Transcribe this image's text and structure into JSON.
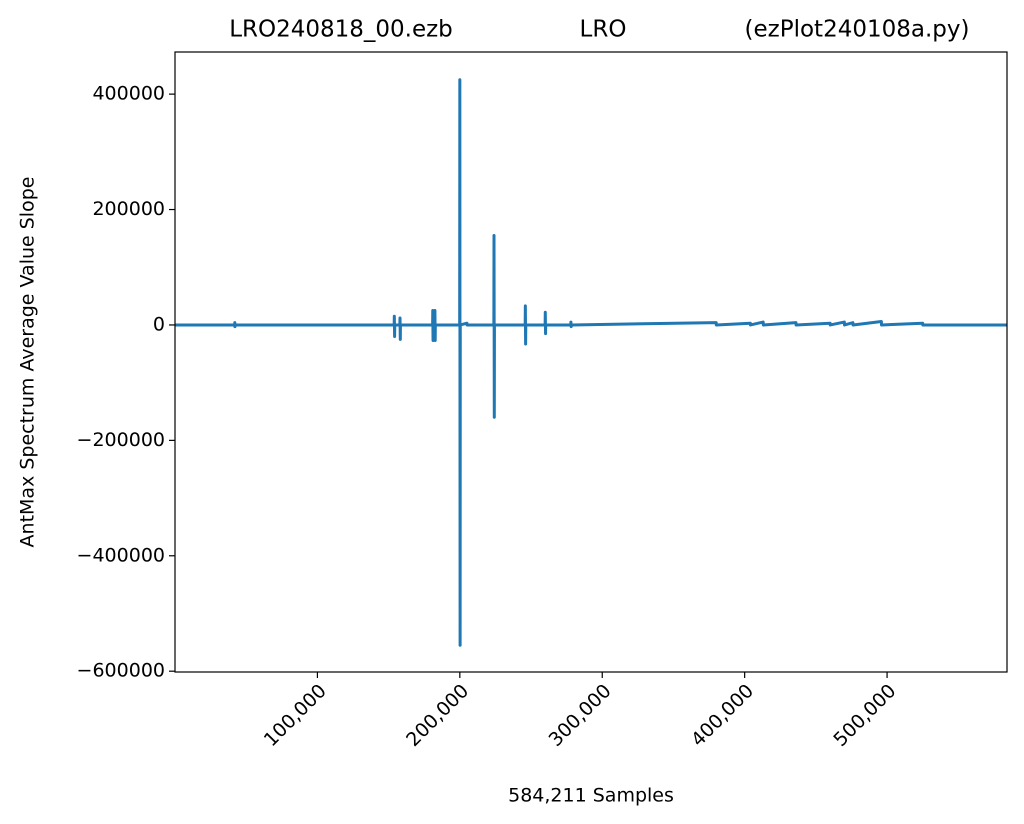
{
  "chart_data": {
    "type": "line",
    "title": [
      "LRO240818_00.ezb",
      "LRO",
      "(ezPlot240108a.py)"
    ],
    "xlabel": "584,211 Samples",
    "ylabel": "AntMax Spectrum Average Value Slope",
    "xlim": [
      0,
      584211
    ],
    "ylim": [
      -601400,
      473000
    ],
    "xticks": [
      {
        "value": 100000,
        "label": "100,000"
      },
      {
        "value": 200000,
        "label": "200,000"
      },
      {
        "value": 300000,
        "label": "300,000"
      },
      {
        "value": 400000,
        "label": "400,000"
      },
      {
        "value": 500000,
        "label": "500,000"
      }
    ],
    "yticks": [
      {
        "value": -600000,
        "label": "−600000"
      },
      {
        "value": -400000,
        "label": "−400000"
      },
      {
        "value": -200000,
        "label": "−200000"
      },
      0,
      200000,
      400000
    ],
    "grid": false,
    "x": [
      0,
      41900,
      42000,
      42100,
      42200,
      153900,
      154000,
      154200,
      154300,
      157900,
      158000,
      158200,
      158300,
      180900,
      181000,
      181200,
      182500,
      182700,
      182800,
      199900,
      200000,
      200200,
      200300,
      205000,
      205100,
      223900,
      224000,
      224200,
      224300,
      245900,
      246000,
      246200,
      246300,
      259900,
      260000,
      260200,
      260300,
      277900,
      278000,
      278200,
      278300,
      380000,
      380100,
      404000,
      404100,
      413000,
      413100,
      436000,
      436100,
      460000,
      460100,
      470000,
      470100,
      476000,
      476100,
      496000,
      496100,
      525000,
      525100,
      584211
    ],
    "series": [
      {
        "color": "#1f77b4",
        "values": [
          0,
          0,
          4000,
          -3000,
          0,
          0,
          15000,
          -20000,
          0,
          0,
          12000,
          -25000,
          0,
          0,
          25000,
          -27000,
          25000,
          -27000,
          0,
          0,
          425000,
          -555000,
          0,
          3000,
          0,
          0,
          155000,
          -160000,
          0,
          0,
          33000,
          -33000,
          0,
          0,
          22000,
          -15000,
          0,
          0,
          5000,
          -3000,
          0,
          4000,
          0,
          3000,
          0,
          5000,
          0,
          4000,
          0,
          3000,
          0,
          5000,
          0,
          4000,
          0,
          6000,
          0,
          3000,
          0,
          0
        ]
      }
    ]
  }
}
